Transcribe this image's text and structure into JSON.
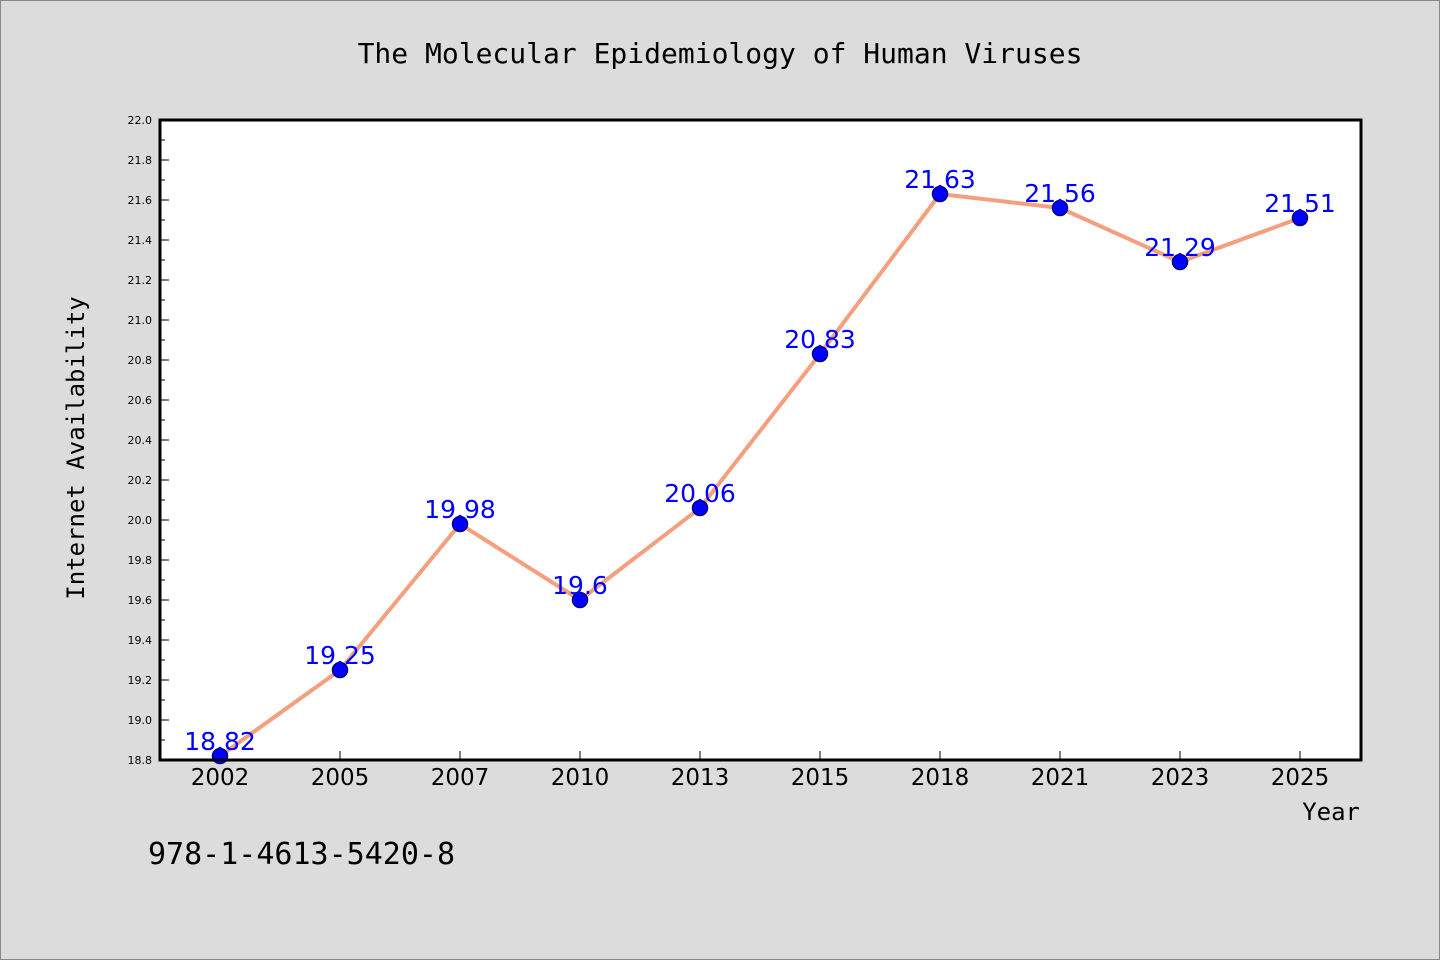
{
  "chart_data": {
    "type": "line",
    "title": "The Molecular Epidemiology of Human Viruses",
    "xlabel": "Year",
    "ylabel": "Internet Availability",
    "categories": [
      "2002",
      "2005",
      "2007",
      "2010",
      "2013",
      "2015",
      "2018",
      "2021",
      "2023",
      "2025"
    ],
    "values": [
      18.82,
      19.25,
      19.98,
      19.6,
      20.06,
      20.83,
      21.63,
      21.56,
      21.29,
      21.51
    ],
    "value_labels": [
      "18.82",
      "19.25",
      "19.98",
      "19.6",
      "20.06",
      "20.83",
      "21.63",
      "21.56",
      "21.29",
      "21.51"
    ],
    "ylim": [
      18.8,
      22.0
    ],
    "yticks": [
      "18.8",
      "19.0",
      "19.2",
      "19.4",
      "19.6",
      "19.8",
      "20.0",
      "20.2",
      "20.4",
      "20.6",
      "20.8",
      "21.0",
      "21.2",
      "21.4",
      "21.6",
      "21.8",
      "22.0"
    ],
    "grid": false,
    "legend": "none",
    "colors": {
      "line": "#f4a07f",
      "marker_fill": "#0000ff",
      "marker_edge": "#00008b",
      "data_label": "#0000ff",
      "plot_background": "#ffffff",
      "figure_background": "#dcdcdc"
    }
  },
  "caption": "978-1-4613-5420-8"
}
